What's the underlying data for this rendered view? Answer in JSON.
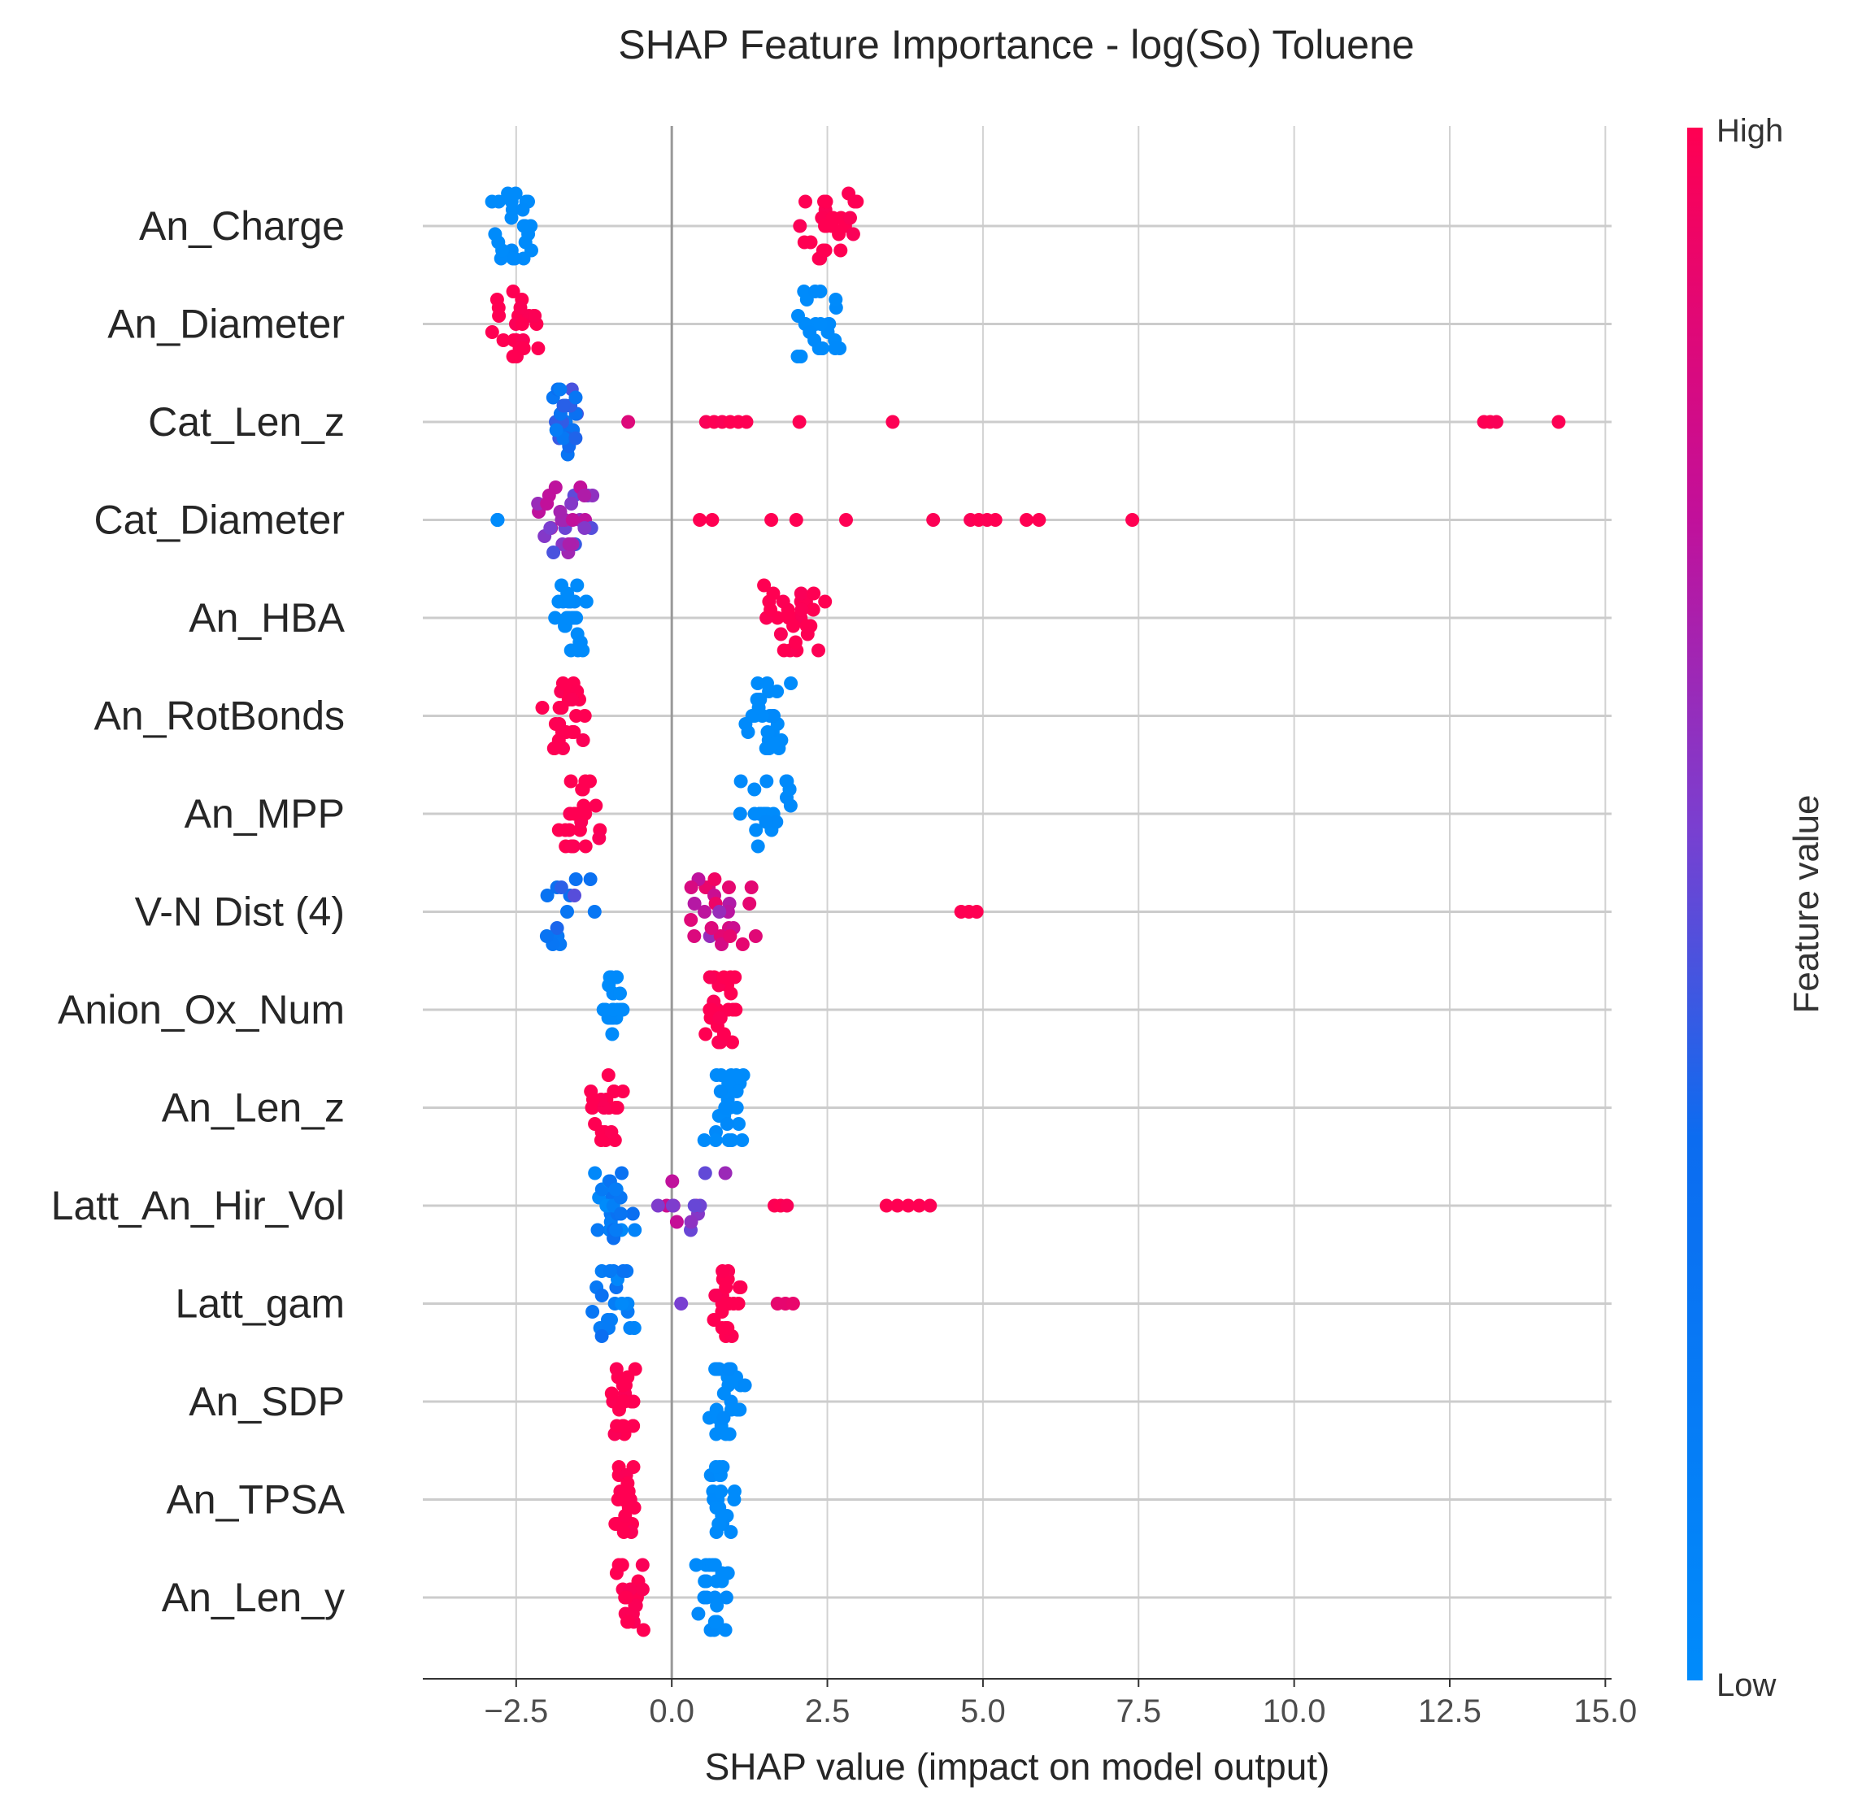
{
  "chart_data": {
    "type": "scatter",
    "title": "SHAP Feature Importance - log(So) Toluene",
    "xlabel": "SHAP value (impact on model output)",
    "xlim": [
      -4.0,
      15.1
    ],
    "xticks": [
      -2.5,
      0.0,
      2.5,
      5.0,
      7.5,
      10.0,
      12.5,
      15.0
    ],
    "xtick_labels": [
      "−2.5",
      "0.0",
      "2.5",
      "5.0",
      "7.5",
      "10.0",
      "12.5",
      "15.0"
    ],
    "grid": true,
    "colorbar": {
      "label": "Feature value",
      "high_label": "High",
      "low_label": "Low",
      "low_color": "#008bfb",
      "high_color": "#ff0052"
    },
    "features": [
      {
        "name": "An_Charge",
        "groups": [
          {
            "min": -3.1,
            "max": -2.0,
            "n": 24,
            "fv": 0.0
          },
          {
            "min": 1.9,
            "max": 3.3,
            "n": 26,
            "fv": 1.0
          }
        ]
      },
      {
        "name": "An_Diameter",
        "groups": [
          {
            "min": -3.0,
            "max": -2.0,
            "n": 24,
            "fv": 1.0
          },
          {
            "min": 1.9,
            "max": 2.8,
            "n": 24,
            "fv": 0.0
          }
        ]
      },
      {
        "name": "Cat_Len_z",
        "groups": [
          {
            "min": -1.95,
            "max": -1.45,
            "n": 26,
            "fv": 0.3
          },
          {
            "min": -0.7,
            "max": -0.7,
            "n": 1,
            "fv": 0.85
          },
          {
            "min": 0.55,
            "max": 1.2,
            "n": 6,
            "fv": 1.0
          },
          {
            "min": 2.05,
            "max": 2.05,
            "n": 1,
            "fv": 1.0
          },
          {
            "min": 3.55,
            "max": 3.55,
            "n": 1,
            "fv": 1.0
          },
          {
            "min": 13.05,
            "max": 13.25,
            "n": 3,
            "fv": 1.0
          },
          {
            "min": 14.25,
            "max": 14.25,
            "n": 1,
            "fv": 1.0
          }
        ]
      },
      {
        "name": "Cat_Diameter",
        "groups": [
          {
            "min": -2.8,
            "max": -2.8,
            "n": 4,
            "fv": 0.0
          },
          {
            "min": -2.35,
            "max": -1.15,
            "n": 30,
            "fv": 0.6
          },
          {
            "min": 0.45,
            "max": 0.65,
            "n": 2,
            "fv": 1.0
          },
          {
            "min": 1.6,
            "max": 1.6,
            "n": 1,
            "fv": 1.0
          },
          {
            "min": 2.0,
            "max": 2.0,
            "n": 1,
            "fv": 1.0
          },
          {
            "min": 2.8,
            "max": 2.8,
            "n": 1,
            "fv": 1.0
          },
          {
            "min": 4.2,
            "max": 4.2,
            "n": 1,
            "fv": 1.0
          },
          {
            "min": 4.8,
            "max": 5.2,
            "n": 4,
            "fv": 1.0
          },
          {
            "min": 5.7,
            "max": 5.9,
            "n": 2,
            "fv": 1.0
          },
          {
            "min": 7.4,
            "max": 7.4,
            "n": 1,
            "fv": 1.0
          }
        ]
      },
      {
        "name": "An_HBA",
        "groups": [
          {
            "min": -1.9,
            "max": -1.25,
            "n": 26,
            "fv": 0.0
          },
          {
            "min": 1.45,
            "max": 2.5,
            "n": 28,
            "fv": 1.0
          }
        ]
      },
      {
        "name": "An_RotBonds",
        "groups": [
          {
            "min": -2.15,
            "max": -1.2,
            "n": 26,
            "fv": 1.0
          },
          {
            "min": 1.1,
            "max": 1.95,
            "n": 26,
            "fv": 0.0
          }
        ]
      },
      {
        "name": "An_MPP",
        "groups": [
          {
            "min": -1.9,
            "max": -1.05,
            "n": 26,
            "fv": 1.0
          },
          {
            "min": 1.0,
            "max": 2.0,
            "n": 26,
            "fv": 0.0
          }
        ]
      },
      {
        "name": "V-N Dist (4)",
        "groups": [
          {
            "min": -2.35,
            "max": -0.95,
            "n": 14,
            "fv": 0.35
          },
          {
            "min": -0.05,
            "max": 1.5,
            "n": 26,
            "fv": 0.8
          },
          {
            "min": 4.65,
            "max": 4.9,
            "n": 3,
            "fv": 1.0
          }
        ]
      },
      {
        "name": "Anion_Ox_Num",
        "groups": [
          {
            "min": -1.15,
            "max": -0.75,
            "n": 24,
            "fv": 0.0
          },
          {
            "min": 0.5,
            "max": 1.1,
            "n": 26,
            "fv": 1.0
          }
        ]
      },
      {
        "name": "An_Len_z",
        "groups": [
          {
            "min": -1.45,
            "max": -0.6,
            "n": 24,
            "fv": 1.0
          },
          {
            "min": 0.5,
            "max": 1.2,
            "n": 24,
            "fv": 0.0
          }
        ]
      },
      {
        "name": "Latt_An_Hir_Vol",
        "groups": [
          {
            "min": -1.3,
            "max": -0.55,
            "n": 26,
            "fv": 0.15
          },
          {
            "min": -0.45,
            "max": 1.05,
            "n": 14,
            "fv": 0.65
          },
          {
            "min": 1.65,
            "max": 1.85,
            "n": 3,
            "fv": 1.0
          },
          {
            "min": 3.45,
            "max": 4.15,
            "n": 5,
            "fv": 1.0
          }
        ]
      },
      {
        "name": "Latt_gam",
        "groups": [
          {
            "min": -1.3,
            "max": -0.5,
            "n": 22,
            "fv": 0.2
          },
          {
            "min": 0.15,
            "max": 0.15,
            "n": 1,
            "fv": 0.7
          },
          {
            "min": 0.6,
            "max": 1.15,
            "n": 22,
            "fv": 1.0
          },
          {
            "min": 1.7,
            "max": 1.95,
            "n": 3,
            "fv": 0.9
          }
        ]
      },
      {
        "name": "An_SDP",
        "groups": [
          {
            "min": -1.05,
            "max": -0.5,
            "n": 24,
            "fv": 1.0
          },
          {
            "min": 0.55,
            "max": 1.2,
            "n": 24,
            "fv": 0.0
          }
        ]
      },
      {
        "name": "An_TPSA",
        "groups": [
          {
            "min": -0.95,
            "max": -0.55,
            "n": 24,
            "fv": 1.0
          },
          {
            "min": 0.5,
            "max": 1.05,
            "n": 22,
            "fv": 0.0
          }
        ]
      },
      {
        "name": "An_Len_y",
        "groups": [
          {
            "min": -0.95,
            "max": -0.4,
            "n": 24,
            "fv": 1.0
          },
          {
            "min": 0.35,
            "max": 0.95,
            "n": 24,
            "fv": 0.0
          }
        ]
      }
    ]
  }
}
